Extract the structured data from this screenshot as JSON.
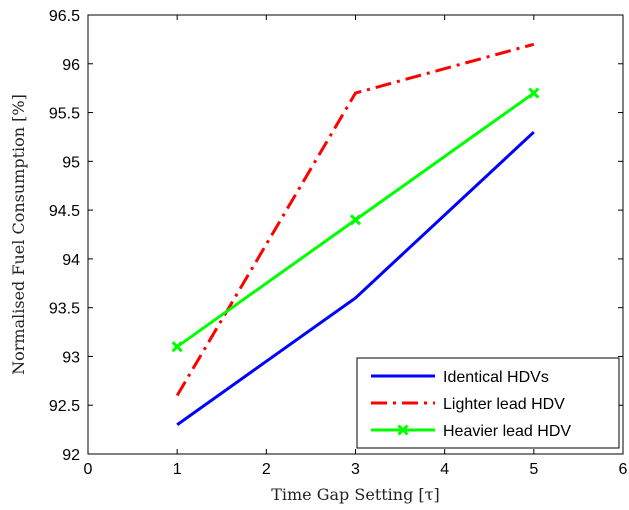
{
  "chart_data": {
    "type": "line",
    "xlabel": "Time Gap Setting [τ]",
    "ylabel": "Normalised Fuel Consumption [%]",
    "xlim": [
      0,
      6
    ],
    "ylim": [
      92,
      96.5
    ],
    "xticks": [
      "0",
      "1",
      "2",
      "3",
      "4",
      "5",
      "6"
    ],
    "yticks": [
      "92",
      "92.5",
      "93",
      "93.5",
      "94",
      "94.5",
      "95",
      "95.5",
      "96",
      "96.5"
    ],
    "x": [
      1,
      3,
      5
    ],
    "grid": false,
    "legend_position": "bottom-right",
    "series": [
      {
        "name": "Identical HDVs",
        "values": [
          92.3,
          93.6,
          95.3
        ],
        "color": "#0000ff",
        "style": "solid",
        "marker": "none"
      },
      {
        "name": "Lighter lead HDV",
        "values": [
          92.6,
          95.7,
          96.2
        ],
        "color": "#ff0000",
        "style": "dash-dot",
        "marker": "none"
      },
      {
        "name": "Heavier lead HDV",
        "values": [
          93.1,
          94.4,
          95.7
        ],
        "color": "#00ff00",
        "style": "solid",
        "marker": "x"
      }
    ]
  }
}
